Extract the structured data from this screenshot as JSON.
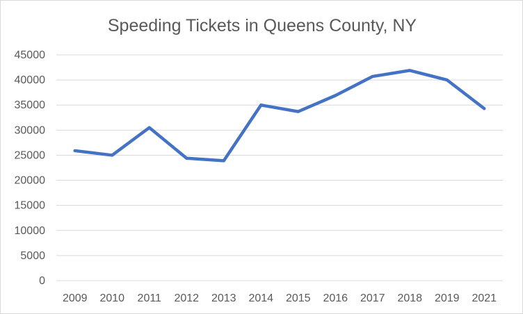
{
  "chart_data": {
    "type": "line",
    "title": "Speeding Tickets in Queens County, NY",
    "xlabel": "",
    "ylabel": "",
    "categories": [
      "2009",
      "2010",
      "2011",
      "2012",
      "2013",
      "2014",
      "2015",
      "2016",
      "2017",
      "2018",
      "2019",
      "2021"
    ],
    "series": [
      {
        "values": [
          25900,
          25000,
          30500,
          24400,
          23900,
          35000,
          33700,
          36900,
          40700,
          41900,
          40000,
          34300
        ]
      }
    ],
    "ylim": [
      0,
      45000
    ],
    "yticks": [
      "0",
      "5000",
      "10000",
      "15000",
      "20000",
      "25000",
      "30000",
      "35000",
      "40000",
      "45000"
    ],
    "grid": true,
    "legend": "none",
    "line_color": "#4472c4"
  }
}
